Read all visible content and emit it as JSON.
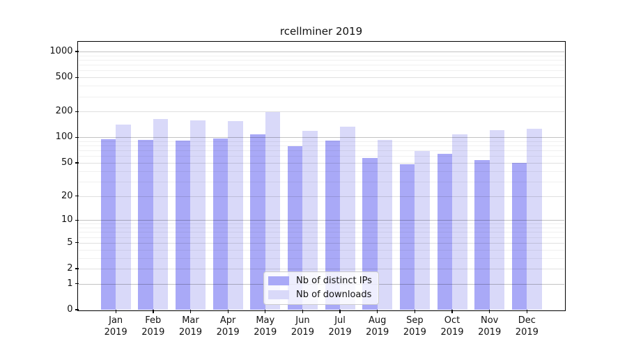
{
  "title": "rcellminer 2019",
  "chart_data": {
    "type": "bar",
    "title": "rcellminer 2019",
    "categories": [
      "Jan 2019",
      "Feb 2019",
      "Mar 2019",
      "Apr 2019",
      "May 2019",
      "Jun 2019",
      "Jul 2019",
      "Aug 2019",
      "Sep 2019",
      "Oct 2019",
      "Nov 2019",
      "Dec 2019"
    ],
    "months": [
      "Jan",
      "Feb",
      "Mar",
      "Apr",
      "May",
      "Jun",
      "Jul",
      "Aug",
      "Sep",
      "Oct",
      "Nov",
      "Dec"
    ],
    "year_label": "2019",
    "series": [
      {
        "name": "Nb of distinct IPs",
        "color": "#a9a9f7",
        "values": [
          95,
          94,
          92,
          96,
          109,
          78,
          92,
          57,
          48,
          64,
          54,
          50
        ]
      },
      {
        "name": "Nb of downloads",
        "color": "#d9d9f9",
        "values": [
          142,
          164,
          157,
          156,
          198,
          118,
          134,
          93,
          69,
          108,
          122,
          125
        ]
      }
    ],
    "xlabel": "",
    "ylabel": "",
    "yscale": "log10(value+1)",
    "ylim": [
      0,
      1300
    ],
    "ytick_labels": [
      1000,
      500,
      200,
      100,
      50,
      20,
      10,
      5,
      2,
      1,
      0
    ],
    "grid": true,
    "legend_position": "lower-center"
  },
  "colors": {
    "bar_distinct_ips": "#a9a9f7",
    "bar_downloads": "#d9d9f9",
    "grid_major": "#c2c2c2",
    "grid_minor": "#ececec",
    "axis": "#000000",
    "background": "#ffffff"
  }
}
